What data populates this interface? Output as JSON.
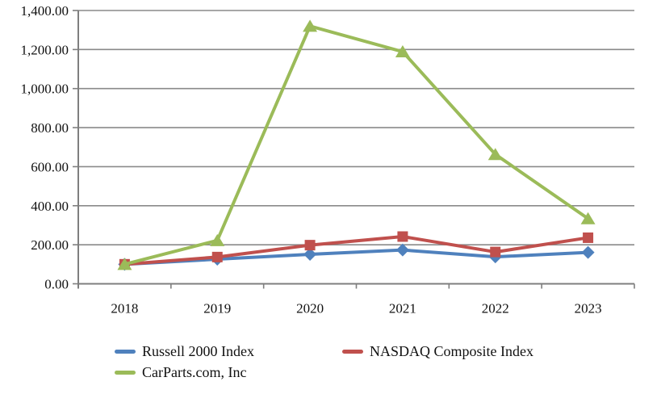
{
  "chart_data": {
    "type": "line",
    "title": "",
    "xlabel": "",
    "ylabel": "",
    "categories": [
      "2018",
      "2019",
      "2020",
      "2021",
      "2022",
      "2023"
    ],
    "series": [
      {
        "name": "Russell 2000 Index",
        "color": "#4F81BD",
        "marker": "diamond",
        "values": [
          100,
          126,
          151,
          173,
          138,
          161
        ]
      },
      {
        "name": "NASDAQ Composite Index",
        "color": "#C0504D",
        "marker": "square",
        "values": [
          100,
          137,
          198,
          242,
          163,
          236
        ]
      },
      {
        "name": "CarParts.com, Inc",
        "color": "#9BBB59",
        "marker": "triangle",
        "values": [
          100,
          222,
          1320,
          1189,
          663,
          334
        ]
      }
    ],
    "ylim": [
      0,
      1400
    ],
    "ytick_step": 200,
    "ytick_labels": [
      "0.00",
      "200.00",
      "400.00",
      "600.00",
      "800.00",
      "1,000.00",
      "1,200.00",
      "1,400.00"
    ],
    "grid": true,
    "grid_color": "#8a8a8a",
    "axis_color": "#7f7f7f",
    "text_color": "#111111",
    "background": "#ffffff",
    "legend_position": "bottom"
  }
}
